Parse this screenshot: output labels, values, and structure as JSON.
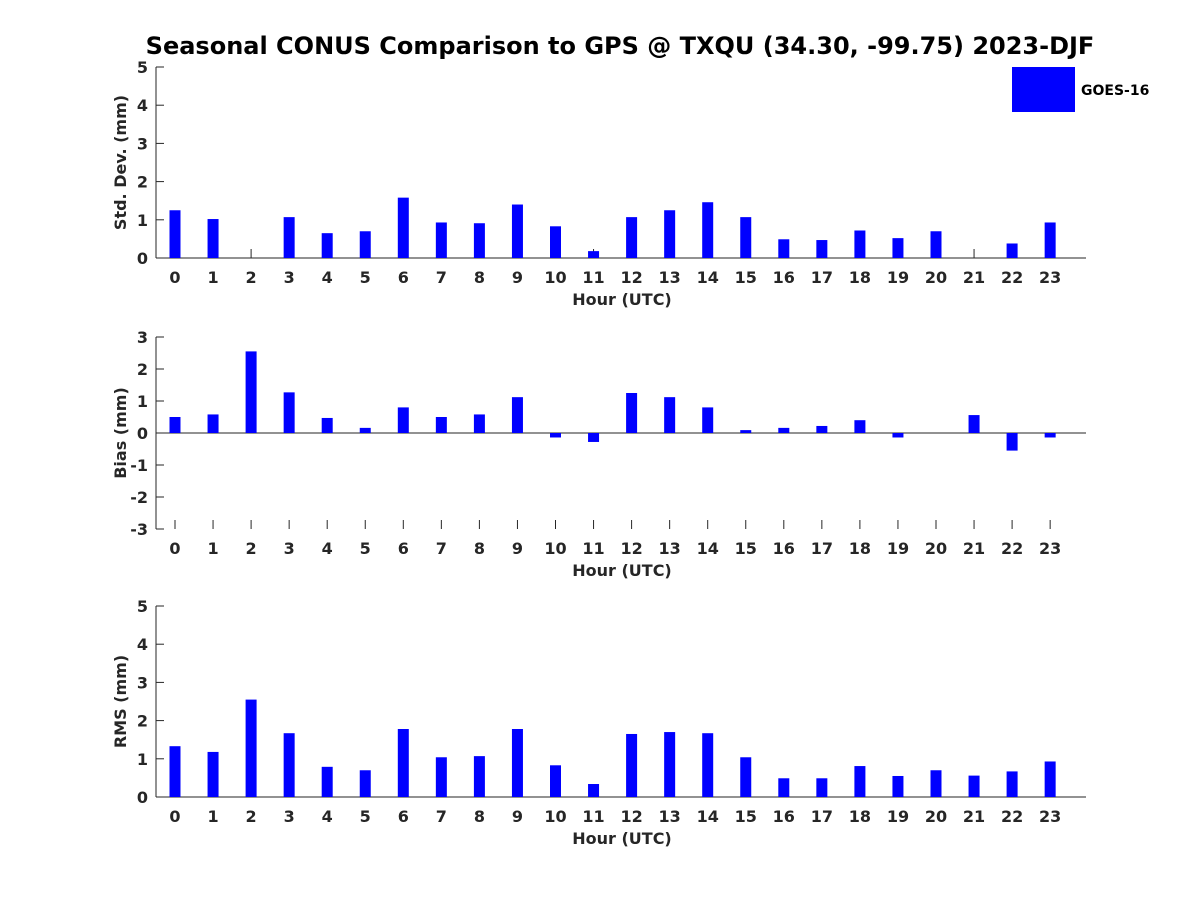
{
  "title": "Seasonal CONUS Comparison to GPS @ TXQU (34.30, -99.75) 2023-DJF",
  "legend": {
    "label": "GOES-16",
    "color": "#0000ff",
    "placement": "top-right"
  },
  "colors": {
    "bar": "#0000ff",
    "axis": "#262626"
  },
  "chart_data": [
    {
      "type": "bar",
      "xlabel": "Hour (UTC)",
      "ylabel": "Std. Dev. (mm)",
      "ylim": [
        0,
        5
      ],
      "yticks": [
        0,
        1,
        2,
        3,
        4,
        5
      ],
      "categories": [
        "0",
        "1",
        "2",
        "3",
        "4",
        "5",
        "6",
        "7",
        "8",
        "9",
        "10",
        "11",
        "12",
        "13",
        "14",
        "15",
        "16",
        "17",
        "18",
        "19",
        "20",
        "21",
        "22",
        "23"
      ],
      "series": [
        {
          "name": "GOES-16",
          "values": [
            1.25,
            1.02,
            0,
            1.07,
            0.65,
            0.7,
            1.58,
            0.93,
            0.91,
            1.4,
            0.83,
            0.18,
            1.07,
            1.25,
            1.46,
            1.07,
            0.49,
            0.47,
            0.72,
            0.52,
            0.7,
            0,
            0.38,
            0.93
          ]
        }
      ]
    },
    {
      "type": "bar",
      "xlabel": "Hour (UTC)",
      "ylabel": "Bias (mm)",
      "ylim": [
        -3,
        3
      ],
      "yticks": [
        -3,
        -2,
        -1,
        0,
        1,
        2,
        3
      ],
      "categories": [
        "0",
        "1",
        "2",
        "3",
        "4",
        "5",
        "6",
        "7",
        "8",
        "9",
        "10",
        "11",
        "12",
        "13",
        "14",
        "15",
        "16",
        "17",
        "18",
        "19",
        "20",
        "21",
        "22",
        "23"
      ],
      "series": [
        {
          "name": "GOES-16",
          "values": [
            0.5,
            0.58,
            2.55,
            1.27,
            0.47,
            0.16,
            0.8,
            0.5,
            0.58,
            1.12,
            -0.14,
            -0.28,
            1.25,
            1.12,
            0.8,
            0.09,
            0.16,
            0.22,
            0.4,
            -0.14,
            0,
            0.56,
            -0.55,
            -0.14
          ]
        }
      ]
    },
    {
      "type": "bar",
      "xlabel": "Hour (UTC)",
      "ylabel": "RMS (mm)",
      "ylim": [
        0,
        5
      ],
      "yticks": [
        0,
        1,
        2,
        3,
        4,
        5
      ],
      "categories": [
        "0",
        "1",
        "2",
        "3",
        "4",
        "5",
        "6",
        "7",
        "8",
        "9",
        "10",
        "11",
        "12",
        "13",
        "14",
        "15",
        "16",
        "17",
        "18",
        "19",
        "20",
        "21",
        "22",
        "23"
      ],
      "series": [
        {
          "name": "GOES-16",
          "values": [
            1.33,
            1.18,
            2.55,
            1.67,
            0.79,
            0.7,
            1.78,
            1.04,
            1.07,
            1.78,
            0.83,
            0.34,
            1.65,
            1.7,
            1.67,
            1.04,
            0.49,
            0.49,
            0.81,
            0.55,
            0.7,
            0.56,
            0.67,
            0.93
          ]
        }
      ]
    }
  ]
}
